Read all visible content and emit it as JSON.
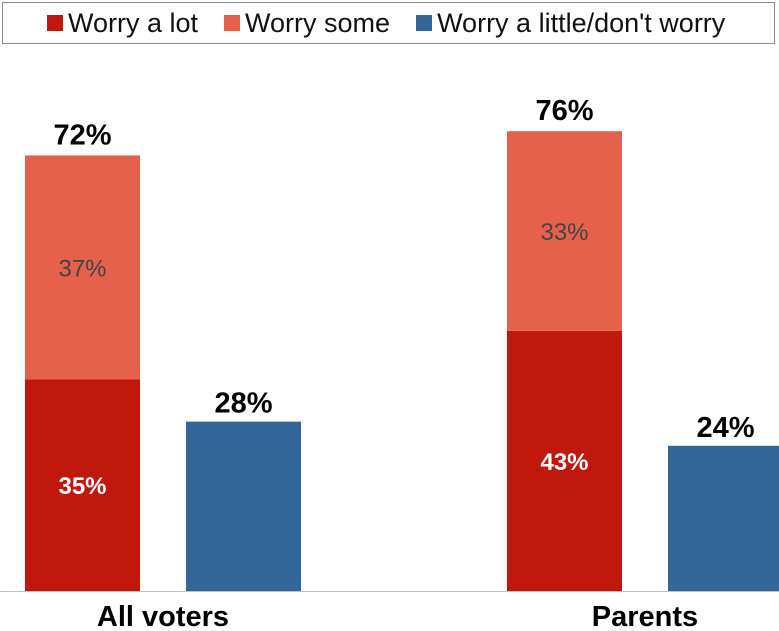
{
  "chart_data": {
    "type": "bar",
    "stacked": true,
    "categories": [
      "All voters",
      "Parents"
    ],
    "series": [
      {
        "name": "Worry a lot",
        "color": "#c0180c",
        "values": [
          35,
          43
        ],
        "stack": "worry"
      },
      {
        "name": "Worry some",
        "color": "#e5614c",
        "values": [
          37,
          33
        ],
        "stack": "worry"
      },
      {
        "name": "Worry a little/don't worry",
        "color": "#336699",
        "values": [
          28,
          24
        ],
        "stack": "nowory"
      }
    ],
    "totals": {
      "worry": [
        "72%",
        "76%"
      ],
      "nowory": [
        "28%",
        "24%"
      ]
    },
    "segment_labels": {
      "Worry a lot": [
        "35%",
        "43%"
      ],
      "Worry some": [
        "37%",
        "33%"
      ]
    },
    "legend_position": "top",
    "grid": false,
    "ylim": [
      0,
      100
    ]
  },
  "legend": [
    {
      "label": "Worry a lot",
      "color": "#c0180c"
    },
    {
      "label": "Worry some",
      "color": "#e5614c"
    },
    {
      "label": "Worry a little/don't worry",
      "color": "#336699"
    }
  ]
}
